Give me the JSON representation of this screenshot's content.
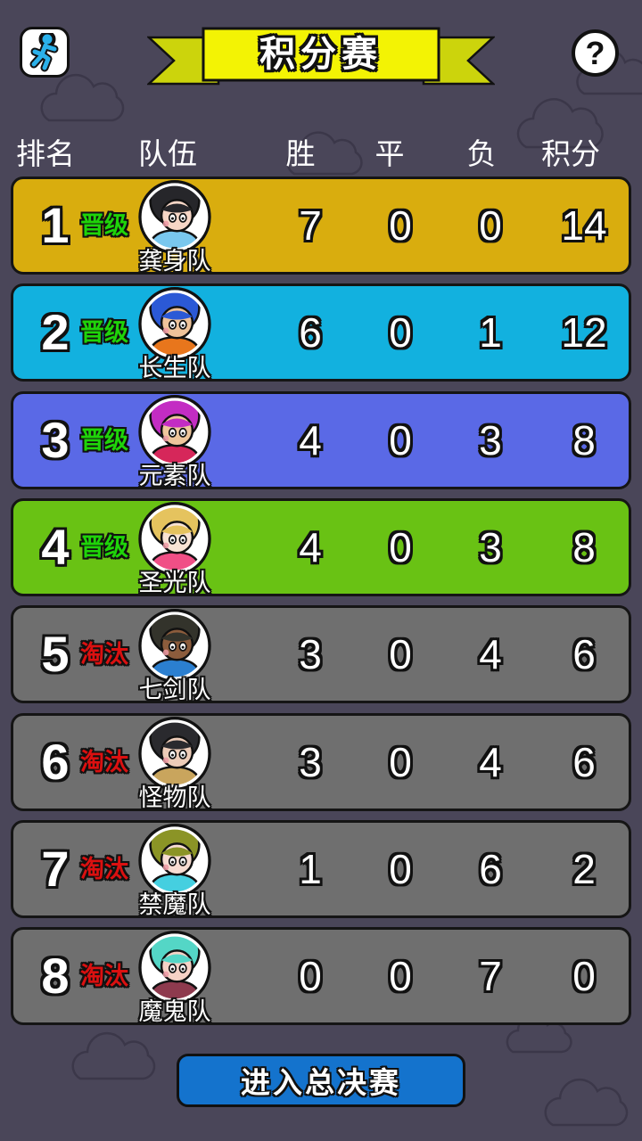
{
  "colors": {
    "background": "#4a4659",
    "advance": "#1fd409",
    "eliminated": "#db1010",
    "banner_bright": "#f3f304",
    "banner_dark": "#ccd40c",
    "button_blue": "#1473cd",
    "runner_blue": "#2bb1ea"
  },
  "topbar": {
    "back_icon": "runner-icon",
    "title": "积分赛",
    "help_label": "?"
  },
  "table": {
    "columns": {
      "rank": "排名",
      "team": "队伍",
      "win": "胜",
      "draw": "平",
      "loss": "负",
      "points": "积分"
    },
    "rows": [
      {
        "rank": "1",
        "status": "晋级",
        "status_type": "advance",
        "team": "龚身队",
        "win": "7",
        "draw": "0",
        "loss": "0",
        "points": "14",
        "row_color": "#d9ad0e",
        "avatar": {
          "hair": "#26262a",
          "skin": "#f6d6c6",
          "shirt": "#79c7ee"
        }
      },
      {
        "rank": "2",
        "status": "晋级",
        "status_type": "advance",
        "team": "长生队",
        "win": "6",
        "draw": "0",
        "loss": "1",
        "points": "12",
        "row_color": "#12b1df",
        "avatar": {
          "hair": "#2b59d6",
          "skin": "#eec39a",
          "shirt": "#e8761c"
        }
      },
      {
        "rank": "3",
        "status": "晋级",
        "status_type": "advance",
        "team": "元素队",
        "win": "4",
        "draw": "0",
        "loss": "3",
        "points": "8",
        "row_color": "#5a69e6",
        "avatar": {
          "hair": "#c32cc3",
          "skin": "#eec69c",
          "shirt": "#d6275a"
        }
      },
      {
        "rank": "4",
        "status": "晋级",
        "status_type": "advance",
        "team": "圣光队",
        "win": "4",
        "draw": "0",
        "loss": "3",
        "points": "8",
        "row_color": "#69c214",
        "avatar": {
          "hair": "#e5c35e",
          "skin": "#f8e3d4",
          "shirt": "#f04f86"
        }
      },
      {
        "rank": "5",
        "status": "淘汰",
        "status_type": "eliminated",
        "team": "七剑队",
        "win": "3",
        "draw": "0",
        "loss": "4",
        "points": "6",
        "row_color": "#6f6f6f",
        "avatar": {
          "hair": "#33332b",
          "skin": "#8c5c3c",
          "shirt": "#2b7fd0"
        }
      },
      {
        "rank": "6",
        "status": "淘汰",
        "status_type": "eliminated",
        "team": "怪物队",
        "win": "3",
        "draw": "0",
        "loss": "4",
        "points": "6",
        "row_color": "#6f6f6f",
        "avatar": {
          "hair": "#2a2a2e",
          "skin": "#edccb8",
          "shirt": "#c9a55d"
        }
      },
      {
        "rank": "7",
        "status": "淘汰",
        "status_type": "eliminated",
        "team": "禁魔队",
        "win": "1",
        "draw": "0",
        "loss": "6",
        "points": "2",
        "row_color": "#6f6f6f",
        "avatar": {
          "hair": "#8b9426",
          "skin": "#f7dcd2",
          "shirt": "#45cfe0"
        }
      },
      {
        "rank": "8",
        "status": "淘汰",
        "status_type": "eliminated",
        "team": "魔鬼队",
        "win": "0",
        "draw": "0",
        "loss": "7",
        "points": "0",
        "row_color": "#6f6f6f",
        "avatar": {
          "hair": "#54d6c6",
          "skin": "#f6d2c6",
          "shirt": "#8e3a4e"
        }
      }
    ]
  },
  "footer": {
    "enter_finals_label": "进入总决赛"
  }
}
